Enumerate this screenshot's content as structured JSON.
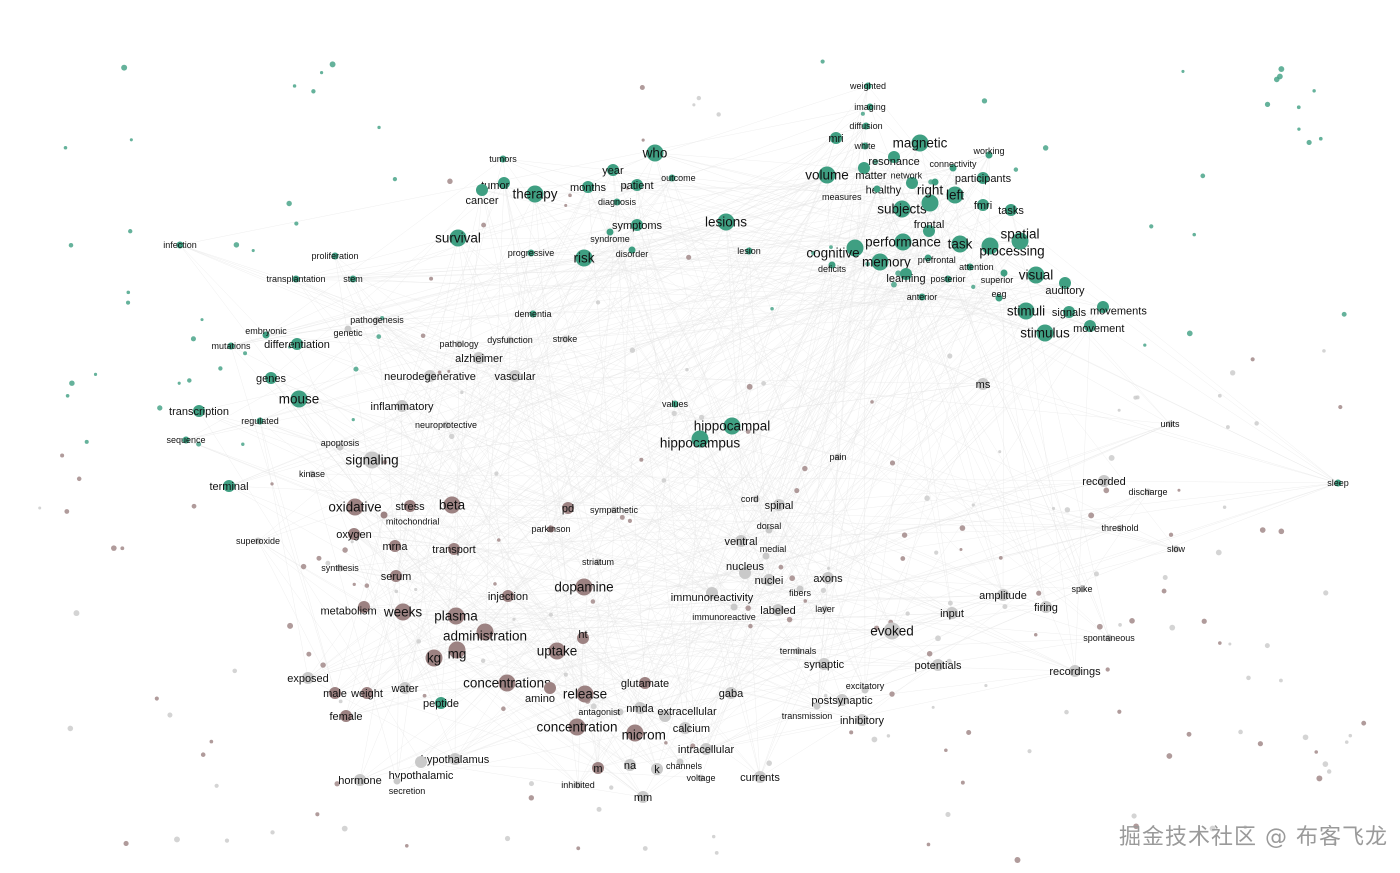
{
  "graph": {
    "type": "word-cooccurrence-network",
    "colors": {
      "green": "#3f9f82",
      "brown": "#9c8282",
      "gray": "#c9c9c9",
      "edge": "#e4e4e4"
    },
    "nodes": [
      [
        "who",
        "green",
        3
      ],
      [
        "therapy",
        "green",
        3
      ],
      [
        "tumor",
        "green",
        2
      ],
      [
        "tumors",
        "green",
        1
      ],
      [
        "cancer",
        "green",
        2
      ],
      [
        "survival",
        "green",
        3
      ],
      [
        "year",
        "green",
        2
      ],
      [
        "months",
        "green",
        2
      ],
      [
        "patient",
        "green",
        2
      ],
      [
        "outcome",
        "green",
        1
      ],
      [
        "diagnosis",
        "green",
        1
      ],
      [
        "symptoms",
        "green",
        2
      ],
      [
        "syndrome",
        "green",
        1
      ],
      [
        "disorder",
        "green",
        1
      ],
      [
        "risk",
        "green",
        3
      ],
      [
        "lesions",
        "green",
        3
      ],
      [
        "lesion",
        "green",
        1
      ],
      [
        "mri",
        "green",
        2
      ],
      [
        "magnetic",
        "green",
        3
      ],
      [
        "white",
        "green",
        1
      ],
      [
        "resonance",
        "green",
        2
      ],
      [
        "matter",
        "green",
        2
      ],
      [
        "volume",
        "green",
        3
      ],
      [
        "connectivity",
        "green",
        1
      ],
      [
        "healthy",
        "green",
        2
      ],
      [
        "network",
        "green",
        1
      ],
      [
        "participants",
        "green",
        2
      ],
      [
        "left",
        "green",
        3
      ],
      [
        "measures",
        "green",
        1
      ],
      [
        "subjects",
        "green",
        3
      ],
      [
        "right",
        "green",
        3
      ],
      [
        "fmri",
        "green",
        2
      ],
      [
        "tasks",
        "green",
        2
      ],
      [
        "frontal",
        "green",
        2
      ],
      [
        "performance",
        "green",
        3
      ],
      [
        "task",
        "green",
        3
      ],
      [
        "processing",
        "green",
        3
      ],
      [
        "spatial",
        "green",
        3
      ],
      [
        "cognitive",
        "green",
        3
      ],
      [
        "memory",
        "green",
        3
      ],
      [
        "deficits",
        "green",
        1
      ],
      [
        "prefrontal",
        "green",
        1
      ],
      [
        "learning",
        "green",
        2
      ],
      [
        "attention",
        "green",
        1
      ],
      [
        "posterior",
        "green",
        1
      ],
      [
        "visual",
        "green",
        3
      ],
      [
        "auditory",
        "green",
        2
      ],
      [
        "anterior",
        "green",
        1
      ],
      [
        "eeg",
        "green",
        1
      ],
      [
        "stimuli",
        "green",
        3
      ],
      [
        "signals",
        "green",
        2
      ],
      [
        "movements",
        "green",
        2
      ],
      [
        "movement",
        "green",
        2
      ],
      [
        "stimulus",
        "green",
        3
      ],
      [
        "superior",
        "green",
        1
      ],
      [
        "working",
        "green",
        1
      ],
      [
        "diffusion",
        "green",
        1
      ],
      [
        "imaging",
        "green",
        1
      ],
      [
        "weighted",
        "green",
        1
      ],
      [
        "progressive",
        "green",
        1
      ],
      [
        "dementia",
        "green",
        1
      ],
      [
        "alzheimer",
        "gray",
        2
      ],
      [
        "vascular",
        "gray",
        2
      ],
      [
        "hippocampal",
        "green",
        3
      ],
      [
        "hippocampus",
        "green",
        3
      ],
      [
        "values",
        "green",
        1
      ],
      [
        "ms",
        "gray",
        2
      ],
      [
        "recorded",
        "gray",
        2
      ],
      [
        "discharge",
        "gray",
        1
      ],
      [
        "threshold",
        "gray",
        1
      ],
      [
        "slow",
        "gray",
        1
      ],
      [
        "units",
        "gray",
        1
      ],
      [
        "sleep",
        "green",
        1
      ],
      [
        "proliferation",
        "green",
        1
      ],
      [
        "infection",
        "green",
        1
      ],
      [
        "transplantation",
        "green",
        1
      ],
      [
        "stem",
        "green",
        1
      ],
      [
        "pathogenesis",
        "gray",
        1
      ],
      [
        "genetic",
        "gray",
        1
      ],
      [
        "embryonic",
        "green",
        1
      ],
      [
        "differentiation",
        "green",
        2
      ],
      [
        "mutations",
        "green",
        1
      ],
      [
        "genes",
        "green",
        2
      ],
      [
        "mouse",
        "green",
        3
      ],
      [
        "transcription",
        "green",
        2
      ],
      [
        "regulated",
        "green",
        1
      ],
      [
        "sequence",
        "green",
        1
      ],
      [
        "terminal",
        "green",
        2
      ],
      [
        "signaling",
        "gray",
        3
      ],
      [
        "kinase",
        "gray",
        1
      ],
      [
        "apoptosis",
        "gray",
        1
      ],
      [
        "inflammatory",
        "gray",
        2
      ],
      [
        "neuroprotective",
        "gray",
        1
      ],
      [
        "neurodegenerative",
        "gray",
        2
      ],
      [
        "stroke",
        "gray",
        1
      ],
      [
        "pathology",
        "gray",
        1
      ],
      [
        "dysfunction",
        "gray",
        1
      ],
      [
        "oxidative",
        "brown",
        3
      ],
      [
        "stress",
        "brown",
        2
      ],
      [
        "beta",
        "brown",
        3
      ],
      [
        "mitochondrial",
        "brown",
        1
      ],
      [
        "oxygen",
        "brown",
        2
      ],
      [
        "superoxide",
        "gray",
        1
      ],
      [
        "mrna",
        "brown",
        2
      ],
      [
        "transport",
        "brown",
        2
      ],
      [
        "pd",
        "brown",
        2
      ],
      [
        "parkinson",
        "brown",
        1
      ],
      [
        "sympathetic",
        "gray",
        1
      ],
      [
        "striatum",
        "gray",
        1
      ],
      [
        "dopamine",
        "brown",
        3
      ],
      [
        "injection",
        "brown",
        2
      ],
      [
        "weeks",
        "brown",
        3
      ],
      [
        "plasma",
        "brown",
        3
      ],
      [
        "administration",
        "brown",
        3
      ],
      [
        "mg",
        "brown",
        3
      ],
      [
        "kg",
        "brown",
        3
      ],
      [
        "uptake",
        "brown",
        3
      ],
      [
        "ht",
        "brown",
        2
      ],
      [
        "serum",
        "brown",
        2
      ],
      [
        "synthesis",
        "gray",
        1
      ],
      [
        "metabolism",
        "brown",
        2
      ],
      [
        "concentrations",
        "brown",
        3
      ],
      [
        "release",
        "brown",
        3
      ],
      [
        "glutamate",
        "brown",
        2
      ],
      [
        "peptide",
        "green",
        2
      ],
      [
        "male",
        "brown",
        2
      ],
      [
        "weight",
        "brown",
        2
      ],
      [
        "water",
        "gray",
        2
      ],
      [
        "female",
        "brown",
        2
      ],
      [
        "exposed",
        "gray",
        2
      ],
      [
        "concentration",
        "brown",
        3
      ],
      [
        "microm",
        "brown",
        3
      ],
      [
        "amino",
        "brown",
        2
      ],
      [
        "nmda",
        "gray",
        2
      ],
      [
        "extracellular",
        "gray",
        2
      ],
      [
        "antagonist",
        "gray",
        1
      ],
      [
        "calcium",
        "gray",
        2
      ],
      [
        "intracellular",
        "gray",
        2
      ],
      [
        "hypothalamus",
        "gray",
        2
      ],
      [
        "hypothalamic",
        "gray",
        2
      ],
      [
        "hormone",
        "gray",
        2
      ],
      [
        "secretion",
        "gray",
        1
      ],
      [
        "m",
        "brown",
        2
      ],
      [
        "na",
        "gray",
        2
      ],
      [
        "k",
        "gray",
        2
      ],
      [
        "mm",
        "gray",
        2
      ],
      [
        "inhibited",
        "gray",
        1
      ],
      [
        "channels",
        "gray",
        1
      ],
      [
        "voltage",
        "gray",
        1
      ],
      [
        "currents",
        "gray",
        2
      ],
      [
        "gaba",
        "gray",
        2
      ],
      [
        "inhibitory",
        "gray",
        2
      ],
      [
        "synaptic",
        "gray",
        2
      ],
      [
        "potentials",
        "gray",
        2
      ],
      [
        "evoked",
        "gray",
        3
      ],
      [
        "input",
        "gray",
        2
      ],
      [
        "firing",
        "gray",
        2
      ],
      [
        "amplitude",
        "gray",
        2
      ],
      [
        "spike",
        "gray",
        1
      ],
      [
        "spontaneous",
        "gray",
        1
      ],
      [
        "recordings",
        "gray",
        2
      ],
      [
        "axons",
        "gray",
        2
      ],
      [
        "nuclei",
        "gray",
        2
      ],
      [
        "nucleus",
        "gray",
        2
      ],
      [
        "ventral",
        "gray",
        2
      ],
      [
        "dorsal",
        "gray",
        1
      ],
      [
        "medial",
        "gray",
        1
      ],
      [
        "spinal",
        "gray",
        2
      ],
      [
        "cord",
        "gray",
        1
      ],
      [
        "immunoreactivity",
        "gray",
        2
      ],
      [
        "immunoreactive",
        "gray",
        1
      ],
      [
        "labeled",
        "gray",
        2
      ],
      [
        "fibers",
        "gray",
        1
      ],
      [
        "layer",
        "gray",
        1
      ],
      [
        "terminals",
        "gray",
        1
      ],
      [
        "postsynaptic",
        "gray",
        2
      ],
      [
        "excitatory",
        "gray",
        1
      ],
      [
        "transmission",
        "gray",
        1
      ],
      [
        "pain",
        "gray",
        1
      ]
    ]
  },
  "watermark": "掘金技术社区 @ 布客飞龙"
}
